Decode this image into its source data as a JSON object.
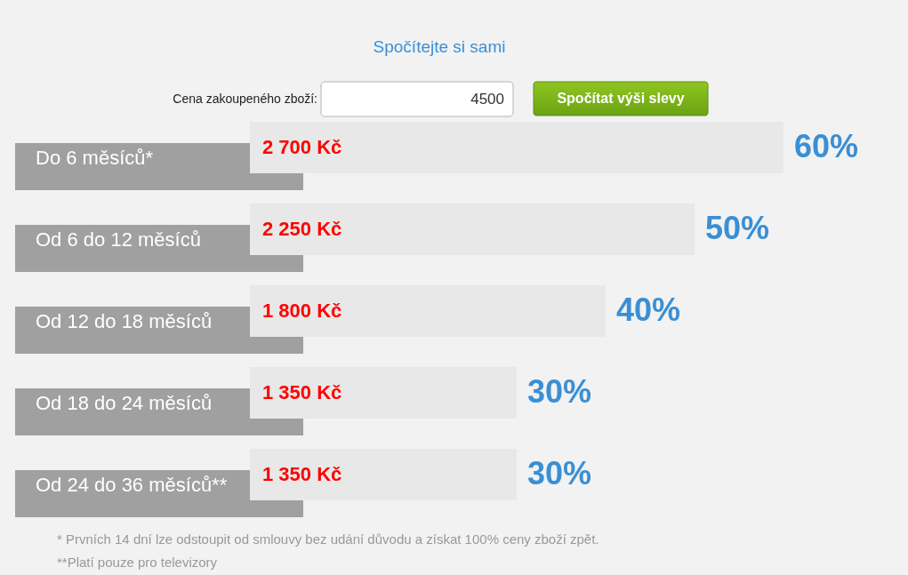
{
  "chart_data": {
    "type": "bar",
    "orientation": "horizontal",
    "title": "Spočítejte si sami",
    "categories": [
      "Do 6 měsíců*",
      "Od 6 do 12 měsíců",
      "Od 12 do 18 měsíců",
      "Od 18 do 24 měsíců",
      "Od 24 do 36 měsíců**"
    ],
    "values": [
      60,
      50,
      40,
      30,
      30
    ],
    "value_labels": [
      "60%",
      "50%",
      "40%",
      "30%",
      "30%"
    ],
    "color": "#e8e8e8",
    "tick_labels": "y",
    "annotations": [
      "Cena zakoupeného zboží:",
      "4500",
      "Spočítat výši slevy",
      "2 700 Kč",
      "2 250 Kč",
      "1 800 Kč",
      "1 350 Kč",
      "1 350 Kč",
      "* Prvních 14 dní lze odstoupit od smlouvy bez udání důvodu a získat 100% ceny zboží zpět.",
      "**Platí pouze pro televizory"
    ]
  }
}
